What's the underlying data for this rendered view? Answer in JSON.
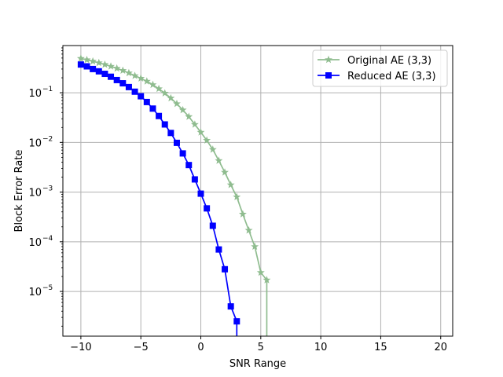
{
  "chart_data": {
    "type": "line",
    "title": "",
    "xlabel": "SNR Range",
    "ylabel": "Block Error Rate",
    "xlim": [
      -11.5,
      21
    ],
    "ylim_log10": [
      -5.9,
      -0.05
    ],
    "yscale": "log",
    "grid": true,
    "legend_position": "top-right",
    "x_ticks": [
      {
        "value": -10,
        "label": "−10"
      },
      {
        "value": -5,
        "label": "−5"
      },
      {
        "value": 0,
        "label": "0"
      },
      {
        "value": 5,
        "label": "5"
      },
      {
        "value": 10,
        "label": "10"
      },
      {
        "value": 15,
        "label": "15"
      },
      {
        "value": 20,
        "label": "20"
      }
    ],
    "y_ticks": [
      {
        "exp": -1,
        "base": "10",
        "sup": "−1"
      },
      {
        "exp": -2,
        "base": "10",
        "sup": "−2"
      },
      {
        "exp": -3,
        "base": "10",
        "sup": "−3"
      },
      {
        "exp": -4,
        "base": "10",
        "sup": "−4"
      },
      {
        "exp": -5,
        "base": "10",
        "sup": "−5"
      }
    ],
    "series": [
      {
        "name": "Original AE (3,3)",
        "color": "#8fbc8f",
        "marker": "star",
        "drop_to_bottom_at": 5.5,
        "points": [
          [
            -10,
            0.49
          ],
          [
            -9.5,
            0.46
          ],
          [
            -9,
            0.43
          ],
          [
            -8.5,
            0.4
          ],
          [
            -8,
            0.37
          ],
          [
            -7.5,
            0.34
          ],
          [
            -7,
            0.31
          ],
          [
            -6.5,
            0.28
          ],
          [
            -6,
            0.25
          ],
          [
            -5.5,
            0.22
          ],
          [
            -5,
            0.195
          ],
          [
            -4.5,
            0.17
          ],
          [
            -4,
            0.145
          ],
          [
            -3.5,
            0.12
          ],
          [
            -3,
            0.098
          ],
          [
            -2.5,
            0.078
          ],
          [
            -2,
            0.06
          ],
          [
            -1.5,
            0.045
          ],
          [
            -1,
            0.033
          ],
          [
            -0.5,
            0.023
          ],
          [
            0,
            0.016
          ],
          [
            0.5,
            0.011
          ],
          [
            1,
            0.0072
          ],
          [
            1.5,
            0.0043
          ],
          [
            2,
            0.0025
          ],
          [
            2.5,
            0.0014
          ],
          [
            3,
            0.0008
          ],
          [
            3.5,
            0.00036
          ],
          [
            4,
            0.00017
          ],
          [
            4.5,
            8e-05
          ],
          [
            5,
            2.4e-05
          ],
          [
            5.5,
            1.7e-05
          ]
        ]
      },
      {
        "name": "Reduced AE (3,3)",
        "color": "#0000ff",
        "marker": "square",
        "drop_to_bottom_at": 3,
        "points": [
          [
            -10,
            0.37
          ],
          [
            -9.5,
            0.34
          ],
          [
            -9,
            0.3
          ],
          [
            -8.5,
            0.27
          ],
          [
            -8,
            0.24
          ],
          [
            -7.5,
            0.21
          ],
          [
            -7,
            0.18
          ],
          [
            -6.5,
            0.155
          ],
          [
            -6,
            0.13
          ],
          [
            -5.5,
            0.105
          ],
          [
            -5,
            0.085
          ],
          [
            -4.5,
            0.065
          ],
          [
            -4,
            0.048
          ],
          [
            -3.5,
            0.034
          ],
          [
            -3,
            0.023
          ],
          [
            -2.5,
            0.0155
          ],
          [
            -2,
            0.0098
          ],
          [
            -1.5,
            0.006
          ],
          [
            -1,
            0.0035
          ],
          [
            -0.5,
            0.0018
          ],
          [
            0,
            0.00093
          ],
          [
            0.5,
            0.00047
          ],
          [
            1,
            0.00021
          ],
          [
            1.5,
            7e-05
          ],
          [
            2,
            2.8e-05
          ],
          [
            2.5,
            5e-06
          ],
          [
            3,
            2.5e-06
          ]
        ]
      }
    ]
  }
}
